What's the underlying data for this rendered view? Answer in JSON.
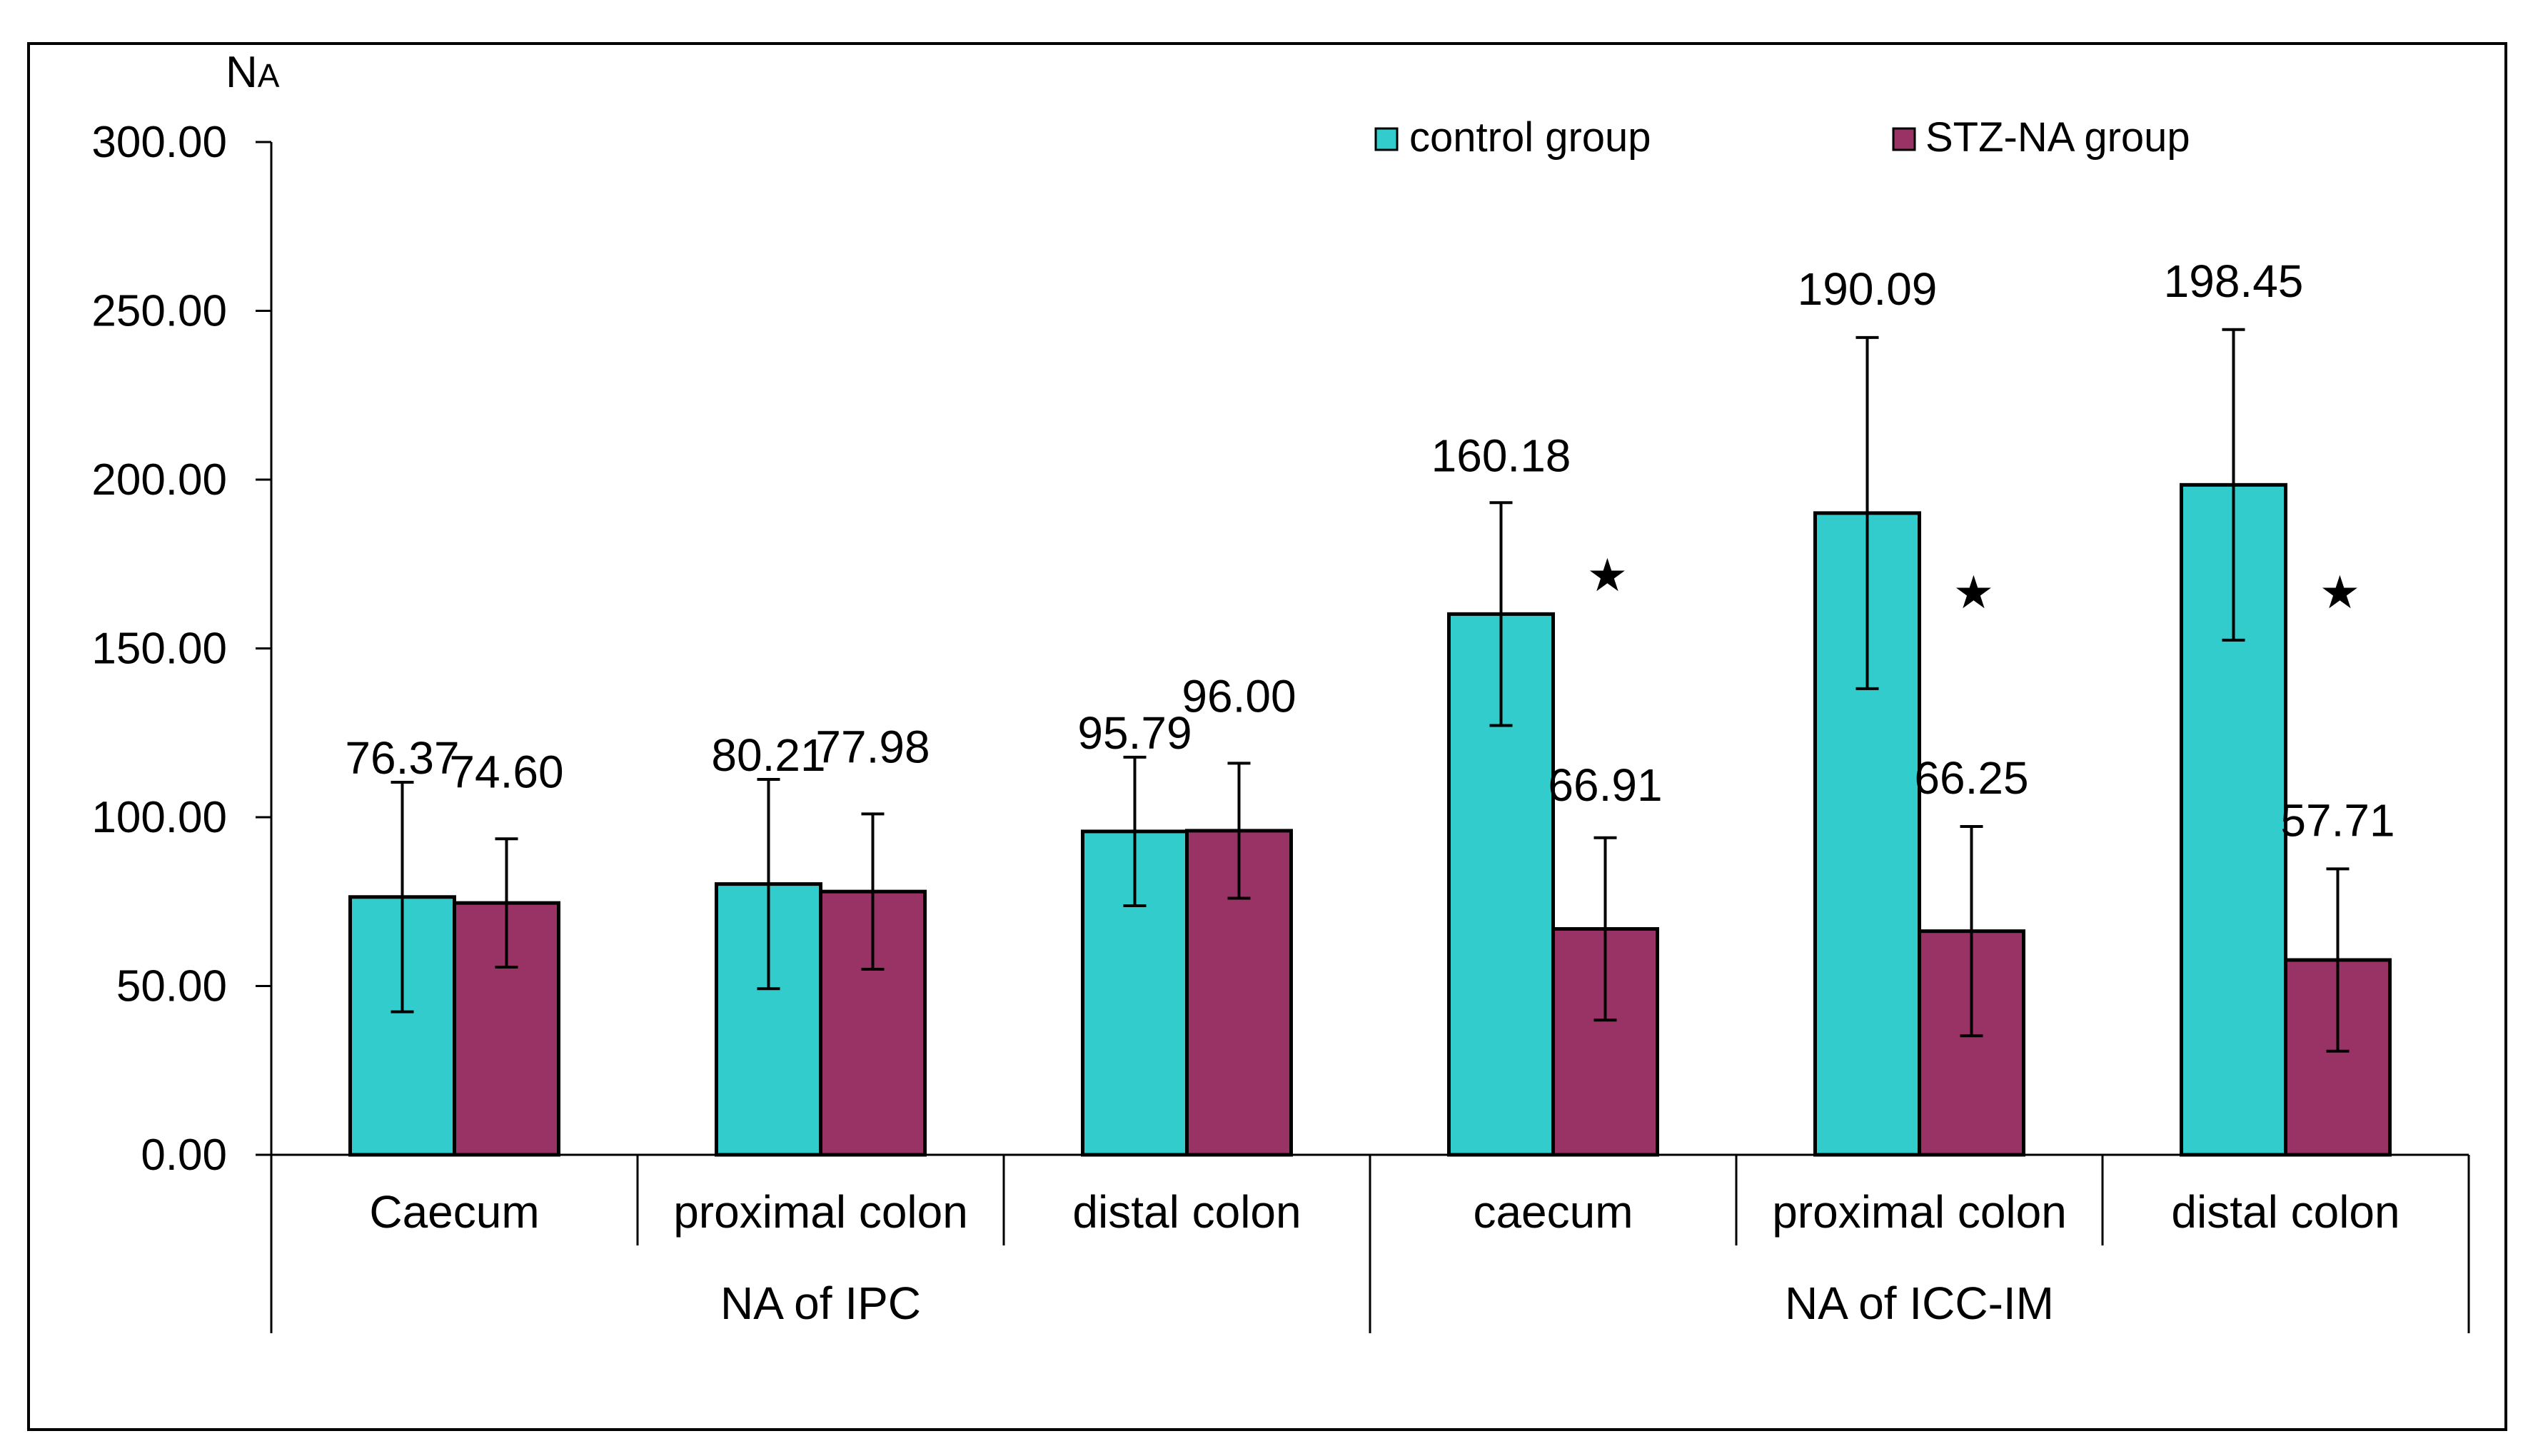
{
  "chart_data": {
    "type": "bar",
    "ylabel_main": "N",
    "ylabel_sub": "A",
    "ylim": [
      0,
      300
    ],
    "y_ticks": [
      0,
      50,
      100,
      150,
      200,
      250,
      300
    ],
    "y_tick_labels": [
      "0.00",
      "50.00",
      "100.00",
      "150.00",
      "200.00",
      "250.00",
      "300.00"
    ],
    "categories": [
      "Caecum",
      "proximal colon",
      "distal colon",
      "caecum",
      "proximal colon",
      "distal colon"
    ],
    "groups": [
      {
        "label": "NA of IPC",
        "span": [
          0,
          2
        ]
      },
      {
        "label": "NA of ICC-IM",
        "span": [
          3,
          5
        ]
      }
    ],
    "series": [
      {
        "name": "control group",
        "color": "#33CCCC",
        "values": [
          76.37,
          80.21,
          95.79,
          160.18,
          190.09,
          198.45
        ],
        "value_labels": [
          "76.37",
          "80.21",
          "95.79",
          "160.18",
          "190.09",
          "198.45"
        ],
        "error": [
          34,
          31,
          22,
          33,
          52,
          46
        ]
      },
      {
        "name": "STZ-NA group",
        "color": "#993366",
        "values": [
          74.6,
          77.98,
          96.0,
          66.91,
          66.25,
          57.71
        ],
        "value_labels": [
          "74.60",
          "77.98",
          "96.00",
          "66.91",
          "66.25",
          "57.71"
        ],
        "error": [
          19,
          23,
          20,
          27,
          31,
          27
        ]
      }
    ],
    "significance_marker": "★",
    "significant_categories": [
      3,
      4,
      5
    ],
    "legend": {
      "position": "top-right",
      "entries": [
        "control group",
        "STZ-NA group"
      ]
    }
  }
}
